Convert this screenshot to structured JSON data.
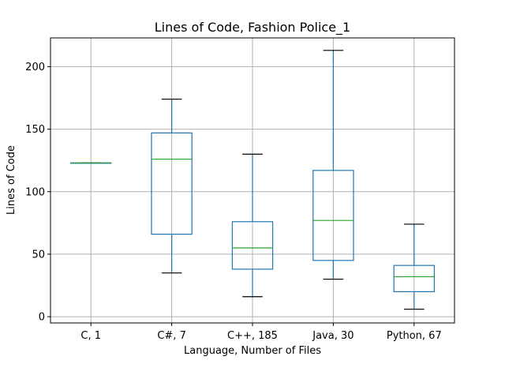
{
  "chart_data": {
    "type": "boxplot",
    "title": "Lines of Code, Fashion Police_1",
    "xlabel": "Language, Number of Files",
    "ylabel": "Lines of Code",
    "ylim": [
      -5,
      223
    ],
    "yticks": [
      0,
      50,
      100,
      150,
      200
    ],
    "grid": true,
    "categories": [
      "C, 1",
      "C#, 7",
      "C++, 185",
      "Java, 30",
      "Python, 67"
    ],
    "boxes": [
      {
        "whisker_low": 123,
        "q1": 123,
        "median": 123,
        "q3": 123,
        "whisker_high": 123
      },
      {
        "whisker_low": 35,
        "q1": 66,
        "median": 126,
        "q3": 147,
        "whisker_high": 174
      },
      {
        "whisker_low": 16,
        "q1": 38,
        "median": 55,
        "q3": 76,
        "whisker_high": 130
      },
      {
        "whisker_low": 30,
        "q1": 45,
        "median": 77,
        "q3": 117,
        "whisker_high": 213
      },
      {
        "whisker_low": 6,
        "q1": 20,
        "median": 32,
        "q3": 41,
        "whisker_high": 74
      }
    ],
    "colors": {
      "box": "#1f77b4",
      "median": "#2ca02c",
      "cap": "#000000",
      "grid": "#b0b0b0"
    }
  }
}
